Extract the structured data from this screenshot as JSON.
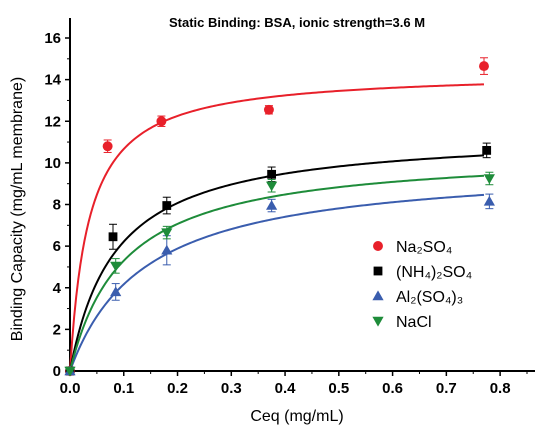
{
  "chart_data": {
    "type": "scatter",
    "title": "Static Binding: BSA, ionic strength=3.6 M",
    "xlabel": "Ceq (mg/mL)",
    "ylabel": "Binding Capacity (mg/mL membrane)",
    "xlim": [
      0,
      0.85
    ],
    "ylim": [
      0,
      16
    ],
    "xticks": [
      0.0,
      0.1,
      0.2,
      0.3,
      0.4,
      0.5,
      0.6,
      0.7,
      0.8
    ],
    "yticks": [
      0,
      2,
      4,
      6,
      8,
      10,
      12,
      14,
      16
    ],
    "x_tick_labels": [
      "0.0",
      "0.1",
      "0.2",
      "0.3",
      "0.4",
      "0.5",
      "0.6",
      "0.7",
      "0.8"
    ],
    "y_tick_labels": [
      "0",
      "2",
      "4",
      "6",
      "8",
      "10",
      "12",
      "14",
      "16"
    ],
    "legend_position": "right-middle",
    "grid": false,
    "series": [
      {
        "name": "Na₂SO₄",
        "color": "#e8202a",
        "marker": "circle",
        "x": [
          0.0,
          0.07,
          0.17,
          0.37,
          0.77
        ],
        "y": [
          0.0,
          10.8,
          12.0,
          12.55,
          14.65
        ],
        "yerr": [
          0.0,
          0.3,
          0.25,
          0.2,
          0.4
        ],
        "fit": {
          "qmax": 14.4,
          "kd": 0.035
        }
      },
      {
        "name": "(NH₄)₂SO₄",
        "color": "#000000",
        "marker": "square",
        "x": [
          0.0,
          0.08,
          0.18,
          0.375,
          0.775
        ],
        "y": [
          0.0,
          6.45,
          7.95,
          9.45,
          10.6
        ],
        "yerr": [
          0.0,
          0.6,
          0.4,
          0.35,
          0.35
        ],
        "fit": {
          "qmax": 11.5,
          "kd": 0.085
        }
      },
      {
        "name": "Al₂(SO₄)₃",
        "color": "#3a5dae",
        "marker": "triangle-up",
        "x": [
          0.0,
          0.085,
          0.18,
          0.375,
          0.78
        ],
        "y": [
          0.0,
          3.8,
          5.8,
          7.95,
          8.15
        ],
        "yerr": [
          0.0,
          0.4,
          0.7,
          0.3,
          0.35
        ],
        "fit": {
          "qmax": 10.0,
          "kd": 0.14
        }
      },
      {
        "name": "NaCl",
        "color": "#1e8c3a",
        "marker": "triangle-down",
        "x": [
          0.0,
          0.085,
          0.18,
          0.375,
          0.78
        ],
        "y": [
          0.0,
          5.05,
          6.65,
          8.9,
          9.25
        ],
        "yerr": [
          0.0,
          0.35,
          0.3,
          0.3,
          0.3
        ],
        "fit": {
          "qmax": 10.6,
          "kd": 0.1
        }
      }
    ]
  }
}
